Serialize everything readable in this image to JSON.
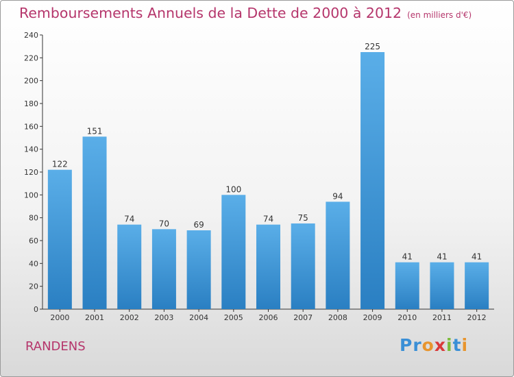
{
  "header": {
    "title": "Remboursements Annuels de la Dette de 2000 à 2012",
    "unit": "(en milliers d'€)"
  },
  "footer": {
    "commune": "RANDENS",
    "logo": "Proxiti"
  },
  "colors": {
    "title": "#b5356b",
    "bar_top": "#5aaee8",
    "bar_bottom": "#2a7fc2",
    "axis": "#333333",
    "logo_letters": [
      "#3a8fd6",
      "#3a8fd6",
      "#e8952e",
      "#d93a3a",
      "#7cbb3a",
      "#3a8fd6",
      "#e8952e"
    ]
  },
  "chart_data": {
    "type": "bar",
    "categories": [
      "2000",
      "2001",
      "2002",
      "2003",
      "2004",
      "2005",
      "2006",
      "2007",
      "2008",
      "2009",
      "2010",
      "2011",
      "2012"
    ],
    "values": [
      122,
      151,
      74,
      70,
      69,
      100,
      74,
      75,
      94,
      225,
      41,
      41,
      41
    ],
    "title": "Remboursements Annuels de la Dette de 2000 à 2012",
    "xlabel": "",
    "ylabel": "",
    "ylim": [
      0,
      240
    ],
    "yticks": [
      0,
      20,
      40,
      60,
      80,
      100,
      120,
      140,
      160,
      180,
      200,
      220,
      240
    ],
    "grid": false,
    "data_labels": true
  }
}
